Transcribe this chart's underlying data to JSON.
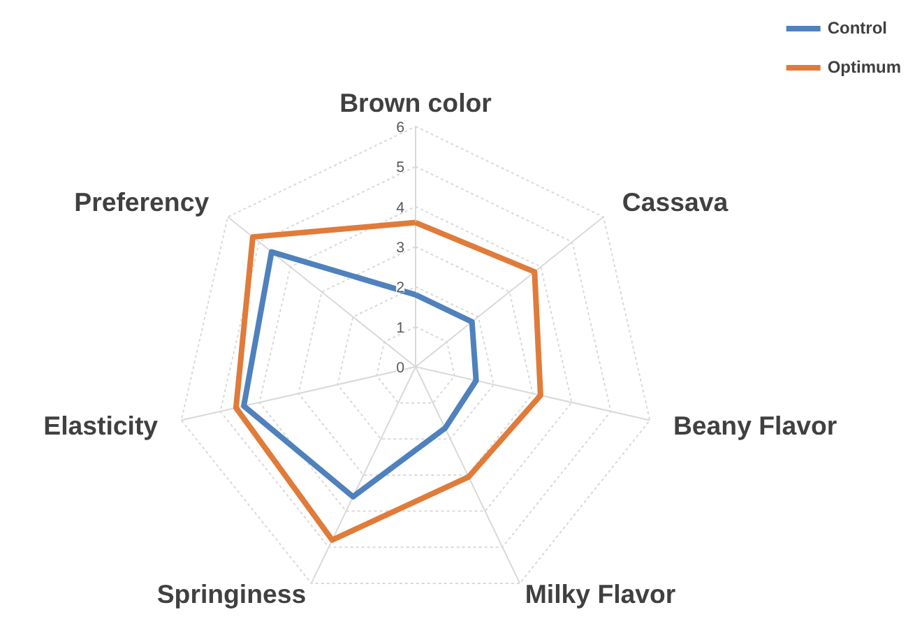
{
  "chart_data": {
    "type": "radar",
    "categories": [
      "Brown color",
      "Cassava",
      "Beany Flavor",
      "Milky Flavor",
      "Springiness",
      "Elasticity",
      "Preferency"
    ],
    "series": [
      {
        "name": "Control",
        "color": "#4f81bd",
        "values": [
          1.8,
          1.8,
          1.55,
          1.7,
          3.6,
          4.4,
          4.6
        ]
      },
      {
        "name": "Optimum",
        "color": "#e07b39",
        "values": [
          3.6,
          3.8,
          3.2,
          3.05,
          4.8,
          4.6,
          5.2
        ]
      }
    ],
    "ylim": [
      0,
      6
    ],
    "yticks": [
      0,
      1,
      2,
      3,
      4,
      5,
      6
    ],
    "grid": true,
    "legend": "top right",
    "line_style": "solid"
  }
}
